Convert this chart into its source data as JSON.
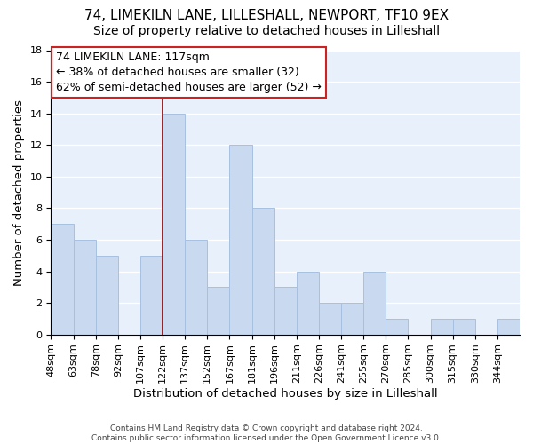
{
  "title": "74, LIMEKILN LANE, LILLESHALL, NEWPORT, TF10 9EX",
  "subtitle": "Size of property relative to detached houses in Lilleshall",
  "xlabel": "Distribution of detached houses by size in Lilleshall",
  "ylabel": "Number of detached properties",
  "footer_lines": [
    "Contains HM Land Registry data © Crown copyright and database right 2024.",
    "Contains public sector information licensed under the Open Government Licence v3.0."
  ],
  "bin_labels": [
    "48sqm",
    "63sqm",
    "78sqm",
    "92sqm",
    "107sqm",
    "122sqm",
    "137sqm",
    "152sqm",
    "167sqm",
    "181sqm",
    "196sqm",
    "211sqm",
    "226sqm",
    "241sqm",
    "255sqm",
    "270sqm",
    "285sqm",
    "300sqm",
    "315sqm",
    "330sqm",
    "344sqm"
  ],
  "bar_values": [
    7,
    6,
    5,
    0,
    5,
    14,
    6,
    3,
    12,
    8,
    3,
    4,
    2,
    2,
    4,
    1,
    0,
    1,
    1,
    0,
    1
  ],
  "bar_color": "#c9d9f0",
  "bar_edge_color": "#a8c0e0",
  "highlight_line_index": 5,
  "highlight_line_color": "#8b0000",
  "annotation_line1": "74 LIMEKILN LANE: 117sqm",
  "annotation_line2": "← 38% of detached houses are smaller (32)",
  "annotation_line3": "62% of semi-detached houses are larger (52) →",
  "ylim": [
    0,
    18
  ],
  "yticks": [
    0,
    2,
    4,
    6,
    8,
    10,
    12,
    14,
    16,
    18
  ],
  "bg_color": "#e8f0fb",
  "grid_color": "#ffffff",
  "title_fontsize": 11,
  "subtitle_fontsize": 10,
  "xlabel_fontsize": 9.5,
  "ylabel_fontsize": 9.5,
  "annotation_fontsize": 9,
  "tick_fontsize": 8
}
